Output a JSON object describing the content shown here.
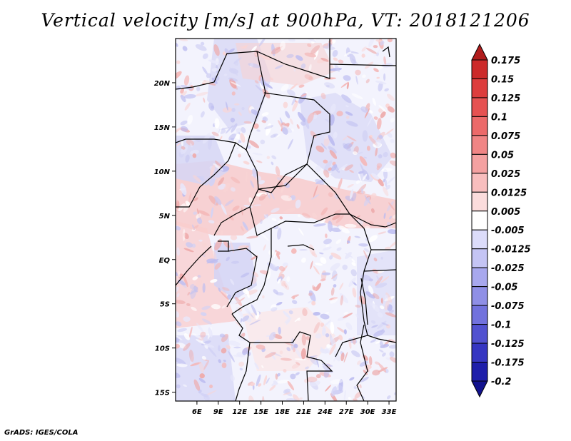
{
  "title": "Vertical velocity [m/s] at 900hPa, VT: 2018121206",
  "footer": "GrADS: IGES/COLA",
  "map": {
    "lon_range": [
      3,
      34
    ],
    "lat_range": [
      -16,
      25
    ],
    "x_tick_labels": [
      "6E",
      "9E",
      "12E",
      "15E",
      "18E",
      "21E",
      "24E",
      "27E",
      "30E",
      "33E"
    ],
    "x_tick_values": [
      6,
      9,
      12,
      15,
      18,
      21,
      24,
      27,
      30,
      33
    ],
    "y_tick_labels": [
      "20N",
      "15N",
      "10N",
      "5N",
      "EQ",
      "5S",
      "10S",
      "15S"
    ],
    "y_tick_values": [
      20,
      15,
      10,
      5,
      0,
      -5,
      -10,
      -15
    ]
  },
  "colorbar": {
    "levels": [
      "0.175",
      "0.15",
      "0.125",
      "0.1",
      "0.075",
      "0.05",
      "0.025",
      "0.0125",
      "0.005",
      "-0.005",
      "-0.0125",
      "-0.025",
      "-0.05",
      "-0.075",
      "-0.1",
      "-0.125",
      "-0.175",
      "-0.2"
    ],
    "colors": [
      "#b01c1c",
      "#cc2a2a",
      "#dd3d3d",
      "#e65252",
      "#ec6a6a",
      "#f08585",
      "#f4a1a1",
      "#f8bebe",
      "#fbdcdc",
      "#ffffff",
      "#dcdcfa",
      "#c4c4f4",
      "#a8a8ee",
      "#8f8fe6",
      "#7272dd",
      "#5252d0",
      "#3636c2",
      "#1e1eaa",
      "#12128e"
    ]
  }
}
